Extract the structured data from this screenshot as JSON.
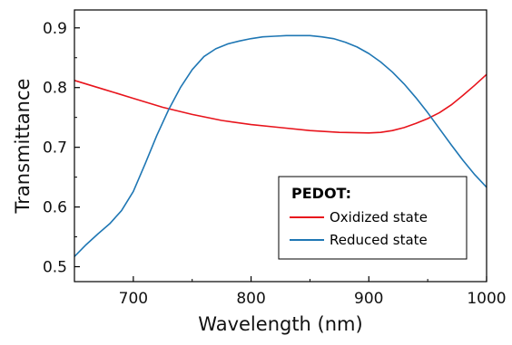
{
  "chart_data": {
    "type": "line",
    "title": "",
    "xlabel": "Wavelength (nm)",
    "ylabel": "Transmittance",
    "xlim": [
      650,
      1000
    ],
    "ylim": [
      0.475,
      0.93
    ],
    "xticks": [
      700,
      800,
      900,
      1000
    ],
    "yticks": [
      0.5,
      0.6,
      0.7,
      0.8,
      0.9
    ],
    "xtick_labels": [
      "700",
      "800",
      "900",
      "1000"
    ],
    "ytick_labels": [
      "0.5",
      "0.6",
      "0.7",
      "0.8",
      "0.9"
    ],
    "grid": false,
    "legend": {
      "title": "PEDOT:",
      "placement": "bottom-right"
    },
    "series": [
      {
        "name": "Oxidized state",
        "color": "#e8141c",
        "x": [
          650,
          675,
          700,
          725,
          750,
          775,
          800,
          825,
          850,
          875,
          900,
          910,
          920,
          930,
          940,
          950,
          960,
          970,
          980,
          990,
          1000
        ],
        "y": [
          0.812,
          0.797,
          0.782,
          0.767,
          0.755,
          0.745,
          0.738,
          0.733,
          0.728,
          0.725,
          0.724,
          0.725,
          0.728,
          0.733,
          0.74,
          0.748,
          0.758,
          0.771,
          0.787,
          0.804,
          0.822
        ]
      },
      {
        "name": "Reduced state",
        "color": "#1f77b4",
        "x": [
          650,
          660,
          670,
          680,
          690,
          700,
          710,
          720,
          730,
          740,
          750,
          760,
          770,
          780,
          790,
          800,
          810,
          820,
          830,
          840,
          850,
          860,
          870,
          880,
          890,
          900,
          910,
          920,
          930,
          940,
          950,
          960,
          970,
          980,
          990,
          1000
        ],
        "y": [
          0.517,
          0.537,
          0.555,
          0.572,
          0.594,
          0.626,
          0.672,
          0.72,
          0.763,
          0.8,
          0.83,
          0.852,
          0.865,
          0.873,
          0.878,
          0.882,
          0.885,
          0.886,
          0.887,
          0.887,
          0.887,
          0.885,
          0.882,
          0.876,
          0.868,
          0.857,
          0.843,
          0.826,
          0.806,
          0.783,
          0.758,
          0.731,
          0.704,
          0.678,
          0.654,
          0.633
        ]
      }
    ]
  }
}
